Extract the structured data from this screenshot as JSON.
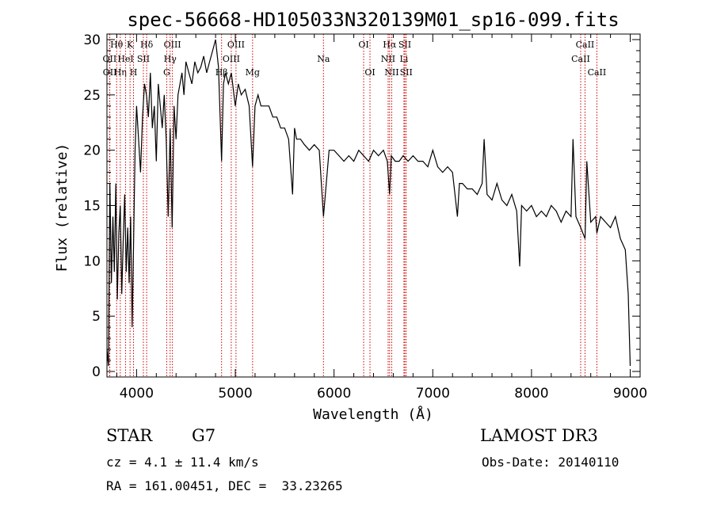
{
  "chart_data": {
    "type": "line",
    "title": "spec-56668-HD105033N320139M01_sp16-099.fits",
    "xlabel": "Wavelength (Å)",
    "ylabel": "Flux (relative)",
    "xlim": [
      3700,
      9100
    ],
    "ylim": [
      -0.5,
      30.5
    ],
    "xticks": [
      4000,
      5000,
      6000,
      7000,
      8000,
      9000
    ],
    "yticks": [
      0,
      5,
      10,
      15,
      20,
      25,
      30
    ],
    "grid": false,
    "series": [
      {
        "x": [
          3700,
          3715,
          3730,
          3745,
          3760,
          3775,
          3790,
          3805,
          3820,
          3835,
          3850,
          3865,
          3880,
          3895,
          3910,
          3925,
          3940,
          3955,
          3970,
          3985,
          4000,
          4020,
          4040,
          4060,
          4080,
          4100,
          4120,
          4140,
          4160,
          4180,
          4200,
          4220,
          4240,
          4260,
          4280,
          4300,
          4320,
          4340,
          4360,
          4380,
          4400,
          4420,
          4440,
          4460,
          4480,
          4500,
          4530,
          4560,
          4590,
          4620,
          4650,
          4680,
          4710,
          4740,
          4770,
          4800,
          4830,
          4861,
          4880,
          4900,
          4930,
          4960,
          5000,
          5030,
          5060,
          5100,
          5140,
          5175,
          5200,
          5230,
          5260,
          5300,
          5340,
          5380,
          5420,
          5460,
          5500,
          5540,
          5580,
          5600,
          5620,
          5660,
          5700,
          5750,
          5800,
          5850,
          5893,
          5950,
          6000,
          6050,
          6100,
          6150,
          6200,
          6250,
          6300,
          6350,
          6400,
          6450,
          6500,
          6540,
          6563,
          6580,
          6620,
          6660,
          6700,
          6750,
          6800,
          6850,
          6900,
          6950,
          7000,
          7050,
          7100,
          7150,
          7200,
          7250,
          7270,
          7300,
          7350,
          7400,
          7450,
          7500,
          7520,
          7550,
          7600,
          7650,
          7700,
          7750,
          7800,
          7850,
          7880,
          7900,
          7950,
          8000,
          8050,
          8100,
          8150,
          8200,
          8250,
          8300,
          8350,
          8400,
          8420,
          8450,
          8498,
          8542,
          8560,
          8600,
          8650,
          8662,
          8700,
          8750,
          8800,
          8850,
          8900,
          8950,
          8980,
          9000
        ],
        "values": [
          2.0,
          0.5,
          17.0,
          8.0,
          14.0,
          9.0,
          17.0,
          6.5,
          12.5,
          15.0,
          7.0,
          12.0,
          16.0,
          9.0,
          13.0,
          8.0,
          14.0,
          4.0,
          12.0,
          20.0,
          24.0,
          21.0,
          18.0,
          23.0,
          26.0,
          25.0,
          23.0,
          27.0,
          22.0,
          24.0,
          19.0,
          26.0,
          24.0,
          22.0,
          25.0,
          21.0,
          14.0,
          22.0,
          13.0,
          24.0,
          21.0,
          25.0,
          26.0,
          27.0,
          25.0,
          28.0,
          27.0,
          26.0,
          28.0,
          27.0,
          27.5,
          28.5,
          27.0,
          28.0,
          29.0,
          30.0,
          27.5,
          19.0,
          26.0,
          27.0,
          26.0,
          27.0,
          24.0,
          26.0,
          25.0,
          25.5,
          24.0,
          18.5,
          24.0,
          25.0,
          24.0,
          24.0,
          24.0,
          23.0,
          23.0,
          22.0,
          22.0,
          21.0,
          16.0,
          22.0,
          21.0,
          21.0,
          20.5,
          20.0,
          20.5,
          20.0,
          14.0,
          20.0,
          20.0,
          19.5,
          19.0,
          19.5,
          19.0,
          20.0,
          19.5,
          19.0,
          20.0,
          19.5,
          20.0,
          19.0,
          16.0,
          19.5,
          19.0,
          19.0,
          19.5,
          19.0,
          19.5,
          19.0,
          19.0,
          18.5,
          20.0,
          18.5,
          18.0,
          18.5,
          18.0,
          14.0,
          17.0,
          17.0,
          16.5,
          16.5,
          16.0,
          17.0,
          21.0,
          16.0,
          15.5,
          17.0,
          15.5,
          15.0,
          16.0,
          14.5,
          9.5,
          15.0,
          14.5,
          15.0,
          14.0,
          14.5,
          14.0,
          15.0,
          14.5,
          13.5,
          14.5,
          14.0,
          21.0,
          14.0,
          13.0,
          12.0,
          19.0,
          13.5,
          14.0,
          12.5,
          14.0,
          13.5,
          13.0,
          14.0,
          12.0,
          11.0,
          7.0,
          0.5
        ]
      }
    ],
    "spectral_lines": [
      {
        "label": "Hθ",
        "x": 3798,
        "row": 0
      },
      {
        "label": "OII",
        "x": 3727,
        "row": 1
      },
      {
        "label": "OII",
        "x": 3729,
        "row": 2
      },
      {
        "label": "Hη",
        "x": 3835,
        "row": 2
      },
      {
        "label": "HeI",
        "x": 3889,
        "row": 1
      },
      {
        "label": "K",
        "x": 3934,
        "row": 0
      },
      {
        "label": "H",
        "x": 3969,
        "row": 2
      },
      {
        "label": "SII",
        "x": 4069,
        "row": 1
      },
      {
        "label": "Hδ",
        "x": 4102,
        "row": 0
      },
      {
        "label": "OIII",
        "x": 4363,
        "row": 0
      },
      {
        "label": "Hγ",
        "x": 4340,
        "row": 1
      },
      {
        "label": "G",
        "x": 4305,
        "row": 2
      },
      {
        "label": "Hβ",
        "x": 4861,
        "row": 2
      },
      {
        "label": "OIII",
        "x": 5007,
        "row": 0
      },
      {
        "label": "OIII",
        "x": 4959,
        "row": 1
      },
      {
        "label": "Mg",
        "x": 5175,
        "row": 2
      },
      {
        "label": "Na",
        "x": 5893,
        "row": 1
      },
      {
        "label": "OI",
        "x": 6300,
        "row": 0
      },
      {
        "label": "OI",
        "x": 6364,
        "row": 2
      },
      {
        "label": "Hα",
        "x": 6563,
        "row": 0
      },
      {
        "label": "NII",
        "x": 6548,
        "row": 1
      },
      {
        "label": "NII",
        "x": 6584,
        "row": 2
      },
      {
        "label": "SII",
        "x": 6717,
        "row": 0
      },
      {
        "label": "Li",
        "x": 6708,
        "row": 1
      },
      {
        "label": "SII",
        "x": 6731,
        "row": 2
      },
      {
        "label": "CaII",
        "x": 8542,
        "row": 0
      },
      {
        "label": "CaII",
        "x": 8498,
        "row": 1
      },
      {
        "label": "CaII",
        "x": 8662,
        "row": 2
      }
    ],
    "line_color": "#000000",
    "marker_line_color": "#cc0000"
  },
  "info": {
    "object_class": "STAR",
    "subclass": "G7",
    "survey": "LAMOST DR3",
    "cz": "cz = 4.1 ± 11.4 km/s",
    "obs_date": "Obs-Date: 20140110",
    "coords": "RA = 161.00451, DEC =  33.23265"
  }
}
